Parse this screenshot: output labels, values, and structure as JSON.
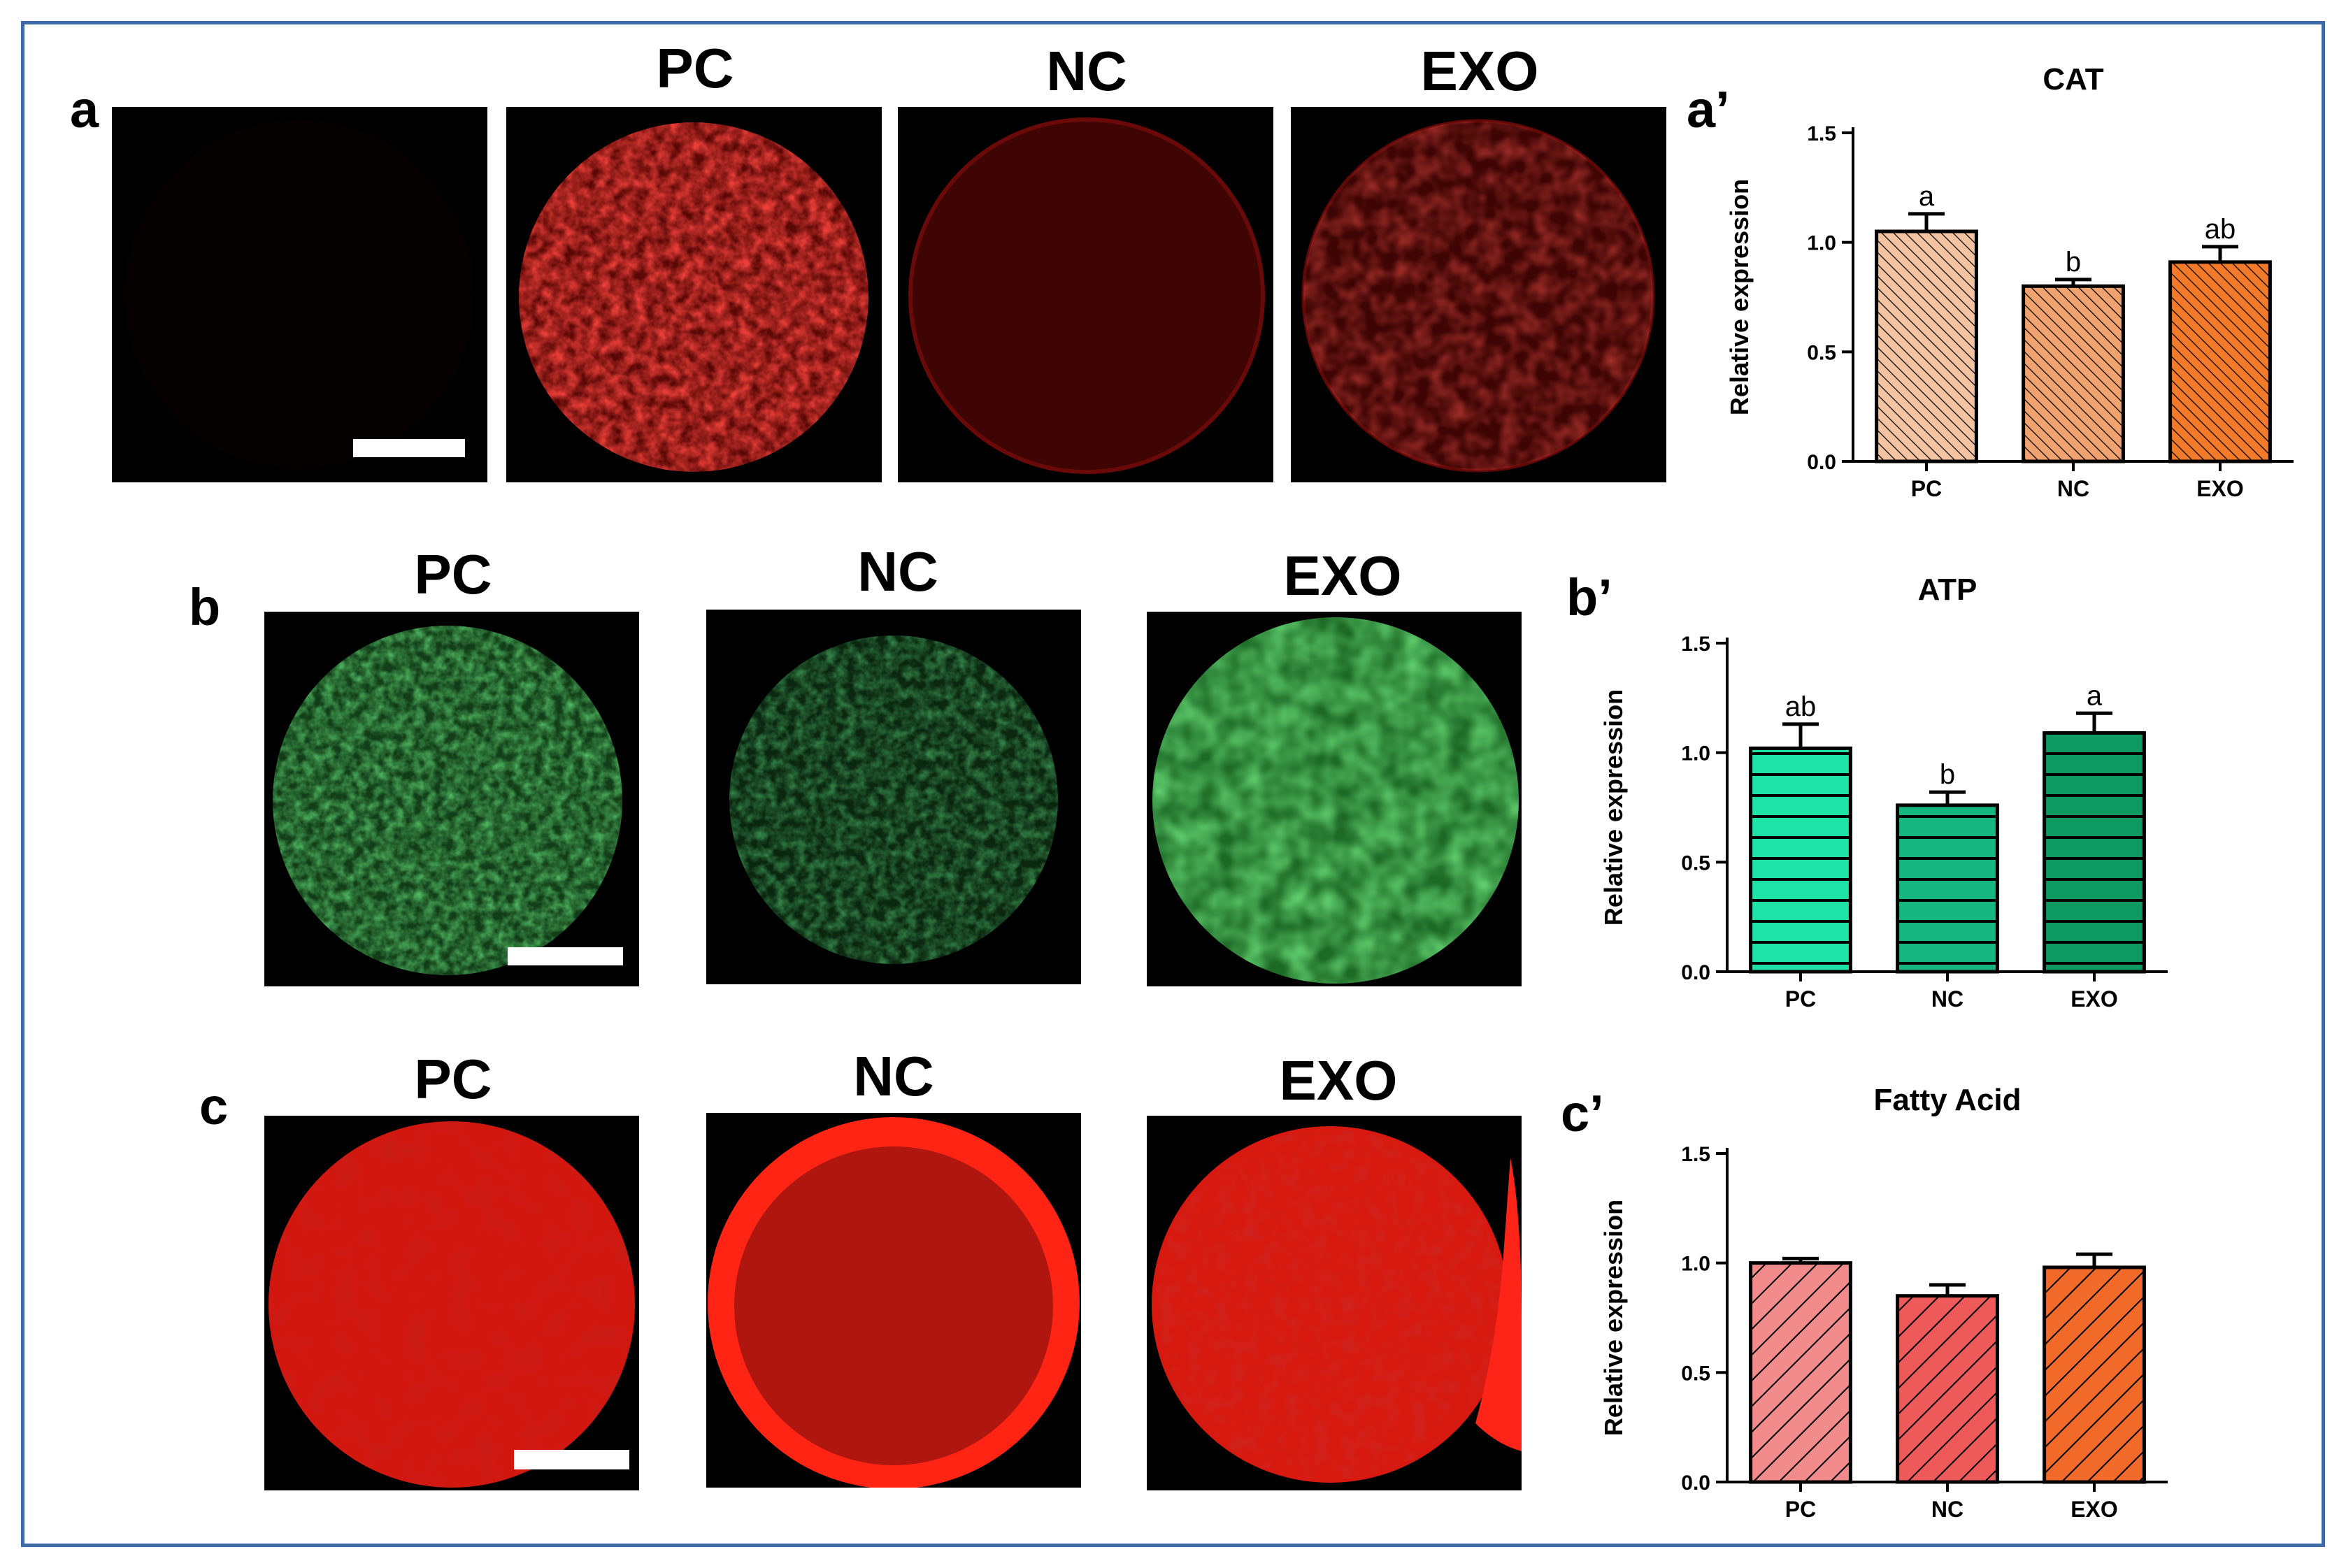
{
  "panel_labels": [
    "a",
    "a’",
    "b",
    "b’",
    "c",
    "c’"
  ],
  "groups": [
    "PC",
    "NC",
    "EXO"
  ],
  "colors": {
    "frame": "#3e6aa5",
    "cat_bars": [
      "#f4c4a2",
      "#f0a36e",
      "#f27a28"
    ],
    "atp_bars": [
      "#1fe2a6",
      "#17b680",
      "#0f9a63"
    ],
    "fa_bars": [
      "#f28c8c",
      "#ee5a5a",
      "#f26a2a"
    ],
    "stain_red": "#d81a10",
    "stain_green": "#1f8a32"
  },
  "chart_data": [
    {
      "type": "bar",
      "title": "CAT",
      "ylabel": "Relative expression",
      "xlabel": "",
      "categories": [
        "PC",
        "NC",
        "EXO"
      ],
      "values": [
        1.05,
        0.8,
        0.91
      ],
      "errors": [
        0.08,
        0.03,
        0.07
      ],
      "letters": [
        "a",
        "b",
        "ab"
      ],
      "ylim": [
        0,
        1.5
      ],
      "yticks": [
        "0.0",
        "0.5",
        "1.0",
        "1.5"
      ],
      "pattern": "diagonal",
      "grid": false
    },
    {
      "type": "bar",
      "title": "ATP",
      "ylabel": "Relative expression",
      "xlabel": "",
      "categories": [
        "PC",
        "NC",
        "EXO"
      ],
      "values": [
        1.02,
        0.76,
        1.09
      ],
      "errors": [
        0.11,
        0.06,
        0.09
      ],
      "letters": [
        "ab",
        "b",
        "a"
      ],
      "ylim": [
        0,
        1.5
      ],
      "yticks": [
        "0.0",
        "0.5",
        "1.0",
        "1.5"
      ],
      "pattern": "horizontal",
      "grid": false
    },
    {
      "type": "bar",
      "title": "Fatty Acid",
      "ylabel": "Relative expression",
      "xlabel": "",
      "categories": [
        "PC",
        "NC",
        "EXO"
      ],
      "values": [
        1.0,
        0.85,
        0.98
      ],
      "errors": [
        0.02,
        0.05,
        0.06
      ],
      "letters": [
        "",
        "",
        ""
      ],
      "ylim": [
        0,
        1.5
      ],
      "yticks": [
        "0.0",
        "0.5",
        "1.0",
        "1.5"
      ],
      "pattern": "wide-diagonal",
      "grid": false
    }
  ]
}
